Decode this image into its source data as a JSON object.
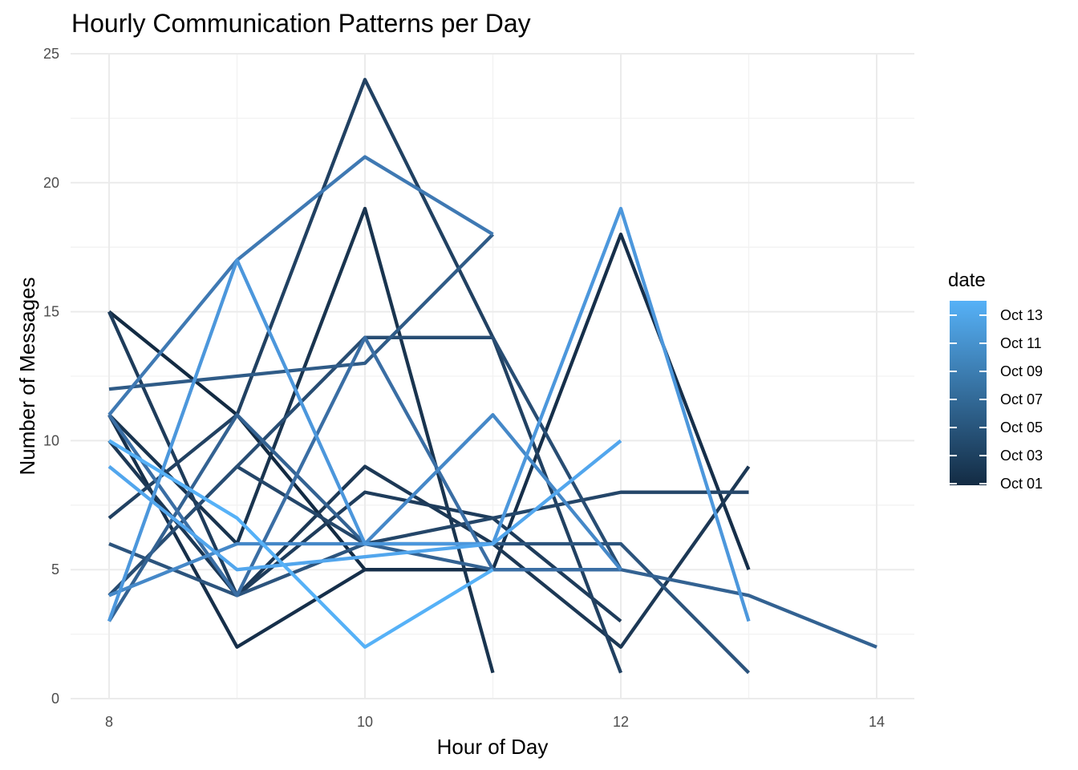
{
  "chart_data": {
    "type": "line",
    "title": "Hourly Communication Patterns per Day",
    "xlabel": "Hour of Day",
    "ylabel": "Number of Messages",
    "xlim": [
      7.7,
      14.3
    ],
    "ylim": [
      0,
      25
    ],
    "x_ticks": [
      8,
      10,
      12,
      14
    ],
    "y_ticks": [
      0,
      5,
      10,
      15,
      20,
      25
    ],
    "grid": true,
    "legend": {
      "title": "date",
      "position": "right",
      "type": "colorbar",
      "labels": [
        "Oct 13",
        "Oct 11",
        "Oct 09",
        "Oct 07",
        "Oct 05",
        "Oct 03",
        "Oct 01"
      ],
      "color_low": "#132b43",
      "color_high": "#56b1f7"
    },
    "series": [
      {
        "color": "#132b43",
        "x": [
          8,
          9,
          10,
          11
        ],
        "y": [
          15,
          11,
          5,
          5
        ]
      },
      {
        "color": "#162f4a",
        "x": [
          8,
          9,
          10,
          11,
          12,
          13
        ],
        "y": [
          11,
          2,
          5,
          5,
          18,
          5
        ]
      },
      {
        "color": "#19344f",
        "x": [
          8,
          9,
          10,
          11
        ],
        "y": [
          11,
          6,
          19,
          1
        ]
      },
      {
        "color": "#1c3855",
        "x": [
          8,
          9,
          10,
          11,
          12,
          13
        ],
        "y": [
          10,
          4,
          9,
          6,
          2,
          9
        ]
      },
      {
        "color": "#1e3c5b",
        "x": [
          8,
          9,
          10,
          11,
          12
        ],
        "y": [
          15,
          4,
          8,
          7,
          3
        ]
      },
      {
        "color": "#214162",
        "x": [
          8,
          9,
          10,
          11,
          12
        ],
        "y": [
          7,
          11,
          24,
          14,
          1
        ]
      },
      {
        "color": "#244669",
        "x": [
          8,
          9,
          10,
          11,
          12,
          13
        ],
        "y": [
          4,
          9,
          6,
          7,
          8,
          8
        ]
      },
      {
        "color": "#284d73",
        "x": [
          8,
          9,
          10,
          11,
          12
        ],
        "y": [
          4,
          9,
          14,
          14,
          5
        ]
      },
      {
        "color": "#2c547d",
        "x": [
          8,
          9,
          10,
          11,
          12,
          13
        ],
        "y": [
          6,
          4,
          6,
          6,
          6,
          1
        ]
      },
      {
        "color": "#2f5b87",
        "x": [
          8,
          9,
          10,
          11
        ],
        "y": [
          12,
          12.5,
          13,
          18
        ]
      },
      {
        "color": "#336292",
        "x": [
          8,
          9,
          10,
          11,
          12,
          13,
          14
        ],
        "y": [
          3,
          11,
          6,
          5,
          5,
          4,
          2
        ]
      },
      {
        "color": "#3a6ea4",
        "x": [
          8,
          9,
          10,
          11,
          12
        ],
        "y": [
          11,
          4,
          14,
          5,
          5
        ]
      },
      {
        "color": "#3f79b3",
        "x": [
          8,
          9,
          10,
          11
        ],
        "y": [
          11,
          17,
          21,
          18
        ]
      },
      {
        "color": "#4588c8",
        "x": [
          8,
          9,
          10,
          11,
          12
        ],
        "y": [
          4,
          6,
          6,
          11,
          5
        ]
      },
      {
        "color": "#4c97dc",
        "x": [
          8,
          9,
          10,
          11,
          12,
          13
        ],
        "y": [
          3,
          17,
          6,
          6,
          19,
          3
        ]
      },
      {
        "color": "#52a6ed",
        "x": [
          8,
          9,
          10,
          11,
          12
        ],
        "y": [
          9,
          5,
          5.5,
          6,
          10
        ]
      },
      {
        "color": "#56b1f7",
        "x": [
          8,
          9,
          10,
          11
        ],
        "y": [
          10,
          7,
          2,
          5
        ]
      }
    ]
  }
}
